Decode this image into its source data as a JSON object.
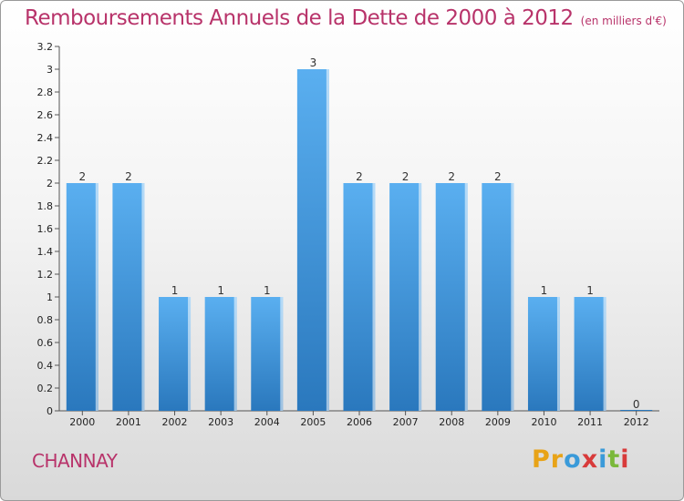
{
  "title": "Remboursements Annuels de la Dette de 2000 à 2012",
  "subtitle": "(en milliers d'€)",
  "commune": "CHANNAY",
  "logo": {
    "text": "Proxiti",
    "colors": [
      "#e8a317",
      "#e8a317",
      "#3a9ad9",
      "#d83a3a",
      "#3a9ad9",
      "#7ab83a",
      "#d83a3a"
    ]
  },
  "colors": {
    "accent": "#b8336a",
    "bar_top": "#5aaff0",
    "bar_bottom": "#2a78bd"
  },
  "chart_data": {
    "type": "bar",
    "categories": [
      "2000",
      "2001",
      "2002",
      "2003",
      "2004",
      "2005",
      "2006",
      "2007",
      "2008",
      "2009",
      "2010",
      "2011",
      "2012"
    ],
    "values": [
      2,
      2,
      1,
      1,
      1,
      3,
      2,
      2,
      2,
      2,
      1,
      1,
      0
    ],
    "data_labels": [
      "2",
      "2",
      "1",
      "1",
      "1",
      "3",
      "2",
      "2",
      "2",
      "2",
      "1",
      "1",
      "0"
    ],
    "ylim": [
      0,
      3.2
    ],
    "y_ticks": [
      "0",
      "0.2",
      "0.4",
      "0.6",
      "0.8",
      "1",
      "1.2",
      "1.4",
      "1.6",
      "1.8",
      "2",
      "2.2",
      "2.4",
      "2.6",
      "2.8",
      "3",
      "3.2"
    ],
    "y_tick_values": [
      0,
      0.2,
      0.4,
      0.6,
      0.8,
      1,
      1.2,
      1.4,
      1.6,
      1.8,
      2,
      2.2,
      2.4,
      2.6,
      2.8,
      3,
      3.2
    ],
    "xlabel": "",
    "ylabel": "",
    "grid": false,
    "legend": "none"
  }
}
